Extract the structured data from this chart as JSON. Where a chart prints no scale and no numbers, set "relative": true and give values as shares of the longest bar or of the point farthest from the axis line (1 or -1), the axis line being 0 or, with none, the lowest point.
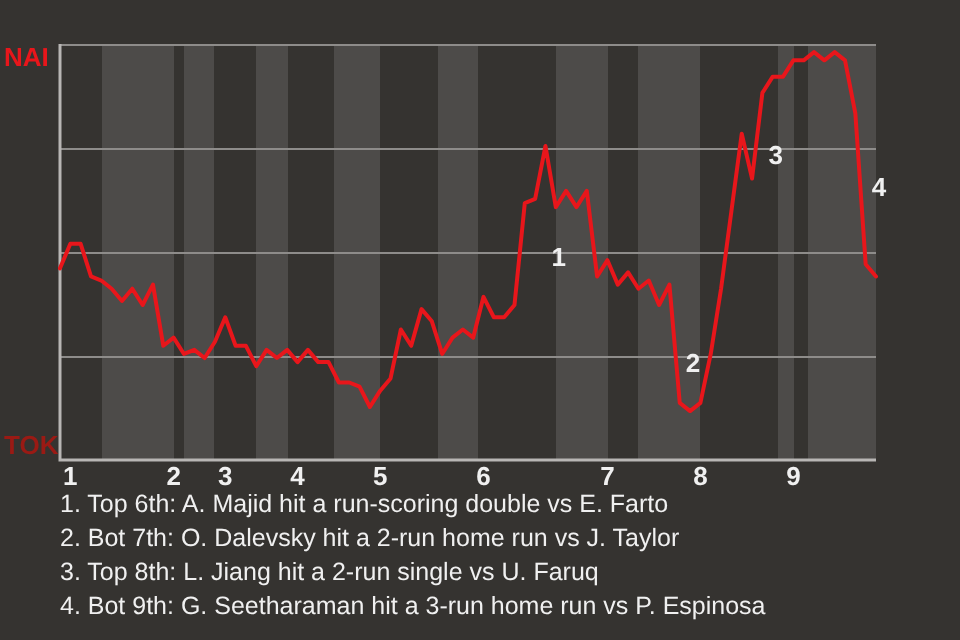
{
  "chart_data": {
    "type": "line",
    "relative": true,
    "categories": [
      null,
      "1",
      null,
      null,
      null,
      null,
      null,
      null,
      null,
      null,
      null,
      "2",
      null,
      null,
      null,
      null,
      "3",
      null,
      null,
      null,
      null,
      null,
      null,
      "4",
      null,
      null,
      null,
      null,
      null,
      null,
      null,
      "5",
      null,
      null,
      null,
      null,
      null,
      null,
      null,
      null,
      null,
      "6",
      null,
      null,
      null,
      null,
      null,
      null,
      null,
      null,
      null,
      null,
      null,
      "7",
      null,
      null,
      null,
      null,
      null,
      null,
      null,
      null,
      "8",
      null,
      null,
      null,
      null,
      null,
      null,
      null,
      null,
      "9",
      null,
      null,
      null,
      null,
      null,
      null,
      null,
      null
    ],
    "series": [
      {
        "color": "#e8161b",
        "values": [
          0.47,
          0.53,
          0.53,
          0.45,
          0.44,
          0.42,
          0.39,
          0.42,
          0.38,
          0.43,
          0.28,
          0.3,
          0.26,
          0.27,
          0.25,
          0.29,
          0.35,
          0.28,
          0.28,
          0.23,
          0.27,
          0.25,
          0.27,
          0.24,
          0.27,
          0.24,
          0.24,
          0.19,
          0.19,
          0.18,
          0.13,
          0.17,
          0.2,
          0.32,
          0.28,
          0.37,
          0.34,
          0.26,
          0.3,
          0.32,
          0.3,
          0.4,
          0.35,
          0.35,
          0.38,
          0.63,
          0.64,
          0.77,
          0.62,
          0.66,
          0.62,
          0.66,
          0.45,
          0.49,
          0.43,
          0.46,
          0.42,
          0.44,
          0.38,
          0.43,
          0.14,
          0.12,
          0.14,
          0.26,
          0.42,
          0.61,
          0.8,
          0.69,
          0.9,
          0.94,
          0.94,
          0.98,
          0.98,
          1,
          0.98,
          1,
          0.98,
          0.85,
          0.48,
          0.45
        ]
      }
    ],
    "grid": "y",
    "marker": "none",
    "line_style": "solid",
    "annotations": [
      "NAI",
      "TOK",
      "1",
      "2",
      "3",
      "4",
      "1. Top 6th: A. Majid hit a run-scoring double vs E. Farto",
      "2. Bot 7th: O. Dalevsky hit a 2-run home run vs J. Taylor",
      "3. Top 8th: L. Jiang hit a 2-run single vs U. Faruq",
      "4. Bot 9th: G. Seetharaman hit a 3-run home run vs P. Espinosa"
    ]
  }
}
